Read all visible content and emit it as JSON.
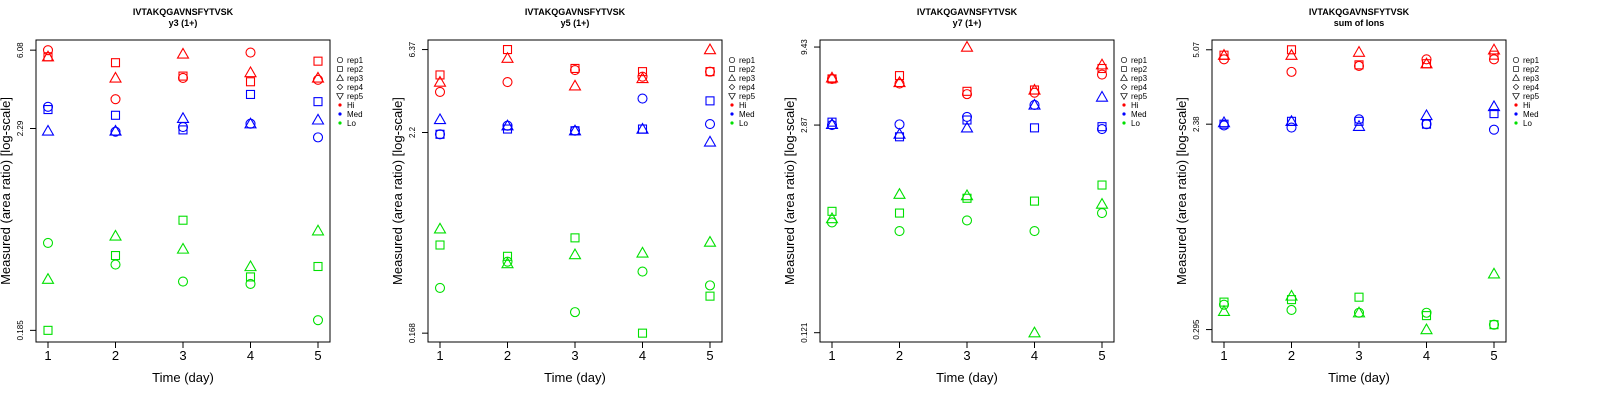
{
  "figure_title": "IVTAKQGAVNSFYTVSK",
  "colors": {
    "Hi": "#ff0000",
    "Med": "#0000ff",
    "Lo": "#00e000",
    "axis": "#000000"
  },
  "legend": {
    "replicates": [
      {
        "label": "rep1",
        "marker": "circle"
      },
      {
        "label": "rep2",
        "marker": "square"
      },
      {
        "label": "rep3",
        "marker": "triangle-up"
      },
      {
        "label": "rep4",
        "marker": "diamond"
      },
      {
        "label": "rep5",
        "marker": "triangle-down"
      }
    ],
    "groups": [
      {
        "label": "Hi",
        "color": "#ff0000"
      },
      {
        "label": "Med",
        "color": "#0000ff"
      },
      {
        "label": "Lo",
        "color": "#00e000"
      }
    ]
  },
  "chart_data": [
    {
      "type": "scatter",
      "title": "IVTAKQGAVNSFYTVSK",
      "subtitle": "y3 (1+)",
      "xlabel": "Time (day)",
      "ylabel": "Measured (area ratio) [log-scale]",
      "x_ticks": [
        1,
        2,
        3,
        4,
        5
      ],
      "y_ticks": [
        "6.08",
        "2.29",
        "0.185"
      ],
      "ylim": [
        0.16,
        6.9
      ],
      "y_scale": "log",
      "series": [
        {
          "name": "Hi rep1",
          "group": "Hi",
          "marker": "circle",
          "x": [
            1,
            2,
            3,
            4,
            5
          ],
          "y": [
            6.08,
            3.3,
            4.3,
            5.9,
            4.2
          ]
        },
        {
          "name": "Hi rep2",
          "group": "Hi",
          "marker": "square",
          "x": [
            1,
            2,
            3,
            4,
            5
          ],
          "y": [
            5.6,
            5.2,
            4.4,
            4.1,
            5.3
          ]
        },
        {
          "name": "Hi rep3",
          "group": "Hi",
          "marker": "triangle-up",
          "x": [
            1,
            2,
            3,
            4,
            5
          ],
          "y": [
            5.6,
            4.3,
            5.8,
            4.6,
            4.3
          ]
        },
        {
          "name": "Med rep1",
          "group": "Med",
          "marker": "circle",
          "x": [
            1,
            2,
            3,
            4,
            5
          ],
          "y": [
            3.0,
            2.2,
            2.33,
            2.43,
            2.05
          ]
        },
        {
          "name": "Med rep2",
          "group": "Med",
          "marker": "square",
          "x": [
            1,
            2,
            3,
            4,
            5
          ],
          "y": [
            2.9,
            2.7,
            2.25,
            3.5,
            3.2
          ]
        },
        {
          "name": "Med rep3",
          "group": "Med",
          "marker": "triangle-up",
          "x": [
            1,
            2,
            3,
            4,
            5
          ],
          "y": [
            2.22,
            2.22,
            2.6,
            2.43,
            2.55
          ]
        },
        {
          "name": "Lo rep1",
          "group": "Lo",
          "marker": "circle",
          "x": [
            1,
            2,
            3,
            4,
            5
          ],
          "y": [
            0.55,
            0.42,
            0.34,
            0.33,
            0.21
          ]
        },
        {
          "name": "Lo rep2",
          "group": "Lo",
          "marker": "square",
          "x": [
            1,
            2,
            3,
            4,
            5
          ],
          "y": [
            0.185,
            0.47,
            0.73,
            0.36,
            0.41
          ]
        },
        {
          "name": "Lo rep3",
          "group": "Lo",
          "marker": "triangle-up",
          "x": [
            1,
            2,
            3,
            4,
            5
          ],
          "y": [
            0.35,
            0.6,
            0.51,
            0.41,
            0.64
          ]
        }
      ]
    },
    {
      "type": "scatter",
      "title": "IVTAKQGAVNSFYTVSK",
      "subtitle": "y5 (1+)",
      "xlabel": "Time (day)",
      "ylabel": "Measured (area ratio) [log-scale]",
      "x_ticks": [
        1,
        2,
        3,
        4,
        5
      ],
      "y_ticks": [
        "6.37",
        "2.2",
        "0.168"
      ],
      "ylim": [
        0.15,
        7.2
      ],
      "y_scale": "log",
      "series": [
        {
          "name": "Hi rep1",
          "group": "Hi",
          "marker": "circle",
          "x": [
            1,
            2,
            3,
            4,
            5
          ],
          "y": [
            3.7,
            4.2,
            4.9,
            4.5,
            4.8
          ]
        },
        {
          "name": "Hi rep2",
          "group": "Hi",
          "marker": "square",
          "x": [
            1,
            2,
            3,
            4,
            5
          ],
          "y": [
            4.6,
            6.37,
            5.0,
            4.8,
            4.8
          ]
        },
        {
          "name": "Hi rep3",
          "group": "Hi",
          "marker": "triangle-up",
          "x": [
            1,
            2,
            3,
            4,
            5
          ],
          "y": [
            4.2,
            5.7,
            4.0,
            4.4,
            6.37
          ]
        },
        {
          "name": "Med rep1",
          "group": "Med",
          "marker": "circle",
          "x": [
            1,
            2,
            3,
            4,
            5
          ],
          "y": [
            2.15,
            2.4,
            2.25,
            3.4,
            2.45
          ]
        },
        {
          "name": "Med rep2",
          "group": "Med",
          "marker": "square",
          "x": [
            1,
            2,
            3,
            4,
            5
          ],
          "y": [
            2.15,
            2.3,
            2.25,
            2.3,
            3.3
          ]
        },
        {
          "name": "Med rep3",
          "group": "Med",
          "marker": "triangle-up",
          "x": [
            1,
            2,
            3,
            4,
            5
          ],
          "y": [
            2.6,
            2.4,
            2.25,
            2.3,
            1.95
          ]
        },
        {
          "name": "Lo rep1",
          "group": "Lo",
          "marker": "circle",
          "x": [
            1,
            2,
            3,
            4,
            5
          ],
          "y": [
            0.3,
            0.42,
            0.22,
            0.37,
            0.31
          ]
        },
        {
          "name": "Lo rep2",
          "group": "Lo",
          "marker": "square",
          "x": [
            1,
            2,
            3,
            4,
            5
          ],
          "y": [
            0.52,
            0.45,
            0.57,
            0.168,
            0.27
          ]
        },
        {
          "name": "Lo rep3",
          "group": "Lo",
          "marker": "triangle-up",
          "x": [
            1,
            2,
            3,
            4,
            5
          ],
          "y": [
            0.64,
            0.41,
            0.46,
            0.47,
            0.54
          ]
        }
      ]
    },
    {
      "type": "scatter",
      "title": "IVTAKQGAVNSFYTVSK",
      "subtitle": "y7 (1+)",
      "xlabel": "Time (day)",
      "ylabel": "Measured (area ratio) [log-scale]",
      "x_ticks": [
        1,
        2,
        3,
        4,
        5
      ],
      "y_ticks": [
        "9.43",
        "2.87",
        "0.121"
      ],
      "ylim": [
        0.105,
        10.5
      ],
      "y_scale": "log",
      "series": [
        {
          "name": "Hi rep1",
          "group": "Hi",
          "marker": "circle",
          "x": [
            1,
            2,
            3,
            4,
            5
          ],
          "y": [
            5.8,
            5.4,
            4.6,
            4.7,
            6.2
          ]
        },
        {
          "name": "Hi rep2",
          "group": "Hi",
          "marker": "square",
          "x": [
            1,
            2,
            3,
            4,
            5
          ],
          "y": [
            5.8,
            6.1,
            4.8,
            4.9,
            6.8
          ]
        },
        {
          "name": "Hi rep3",
          "group": "Hi",
          "marker": "triangle-up",
          "x": [
            1,
            2,
            3,
            4,
            5
          ],
          "y": [
            5.9,
            5.5,
            9.43,
            4.9,
            7.2
          ]
        },
        {
          "name": "Med rep1",
          "group": "Med",
          "marker": "circle",
          "x": [
            1,
            2,
            3,
            4,
            5
          ],
          "y": [
            2.87,
            2.9,
            3.25,
            3.9,
            2.7
          ]
        },
        {
          "name": "Med rep2",
          "group": "Med",
          "marker": "square",
          "x": [
            1,
            2,
            3,
            4,
            5
          ],
          "y": [
            3.0,
            2.4,
            3.1,
            2.75,
            2.8
          ]
        },
        {
          "name": "Med rep3",
          "group": "Med",
          "marker": "triangle-up",
          "x": [
            1,
            2,
            3,
            4,
            5
          ],
          "y": [
            2.9,
            2.5,
            2.75,
            3.9,
            4.4
          ]
        },
        {
          "name": "Lo rep1",
          "group": "Lo",
          "marker": "circle",
          "x": [
            1,
            2,
            3,
            4,
            5
          ],
          "y": [
            0.65,
            0.57,
            0.67,
            0.57,
            0.75
          ]
        },
        {
          "name": "Lo rep2",
          "group": "Lo",
          "marker": "square",
          "x": [
            1,
            2,
            3,
            4,
            5
          ],
          "y": [
            0.77,
            0.75,
            0.94,
            0.9,
            1.15
          ]
        },
        {
          "name": "Lo rep3",
          "group": "Lo",
          "marker": "triangle-up",
          "x": [
            1,
            2,
            3,
            4,
            5
          ],
          "y": [
            0.69,
            1.0,
            0.98,
            0.121,
            0.86
          ]
        }
      ]
    },
    {
      "type": "scatter",
      "title": "IVTAKQGAVNSFYTVSK",
      "subtitle": "sum of Ions",
      "xlabel": "Time (day)",
      "ylabel": "Measured (area ratio) [log-scale]",
      "x_ticks": [
        1,
        2,
        3,
        4,
        5
      ],
      "y_ticks": [
        "5.07",
        "2.38",
        "0.295"
      ],
      "ylim": [
        0.26,
        5.6
      ],
      "y_scale": "log",
      "series": [
        {
          "name": "Hi rep1",
          "group": "Hi",
          "marker": "circle",
          "x": [
            1,
            2,
            3,
            4,
            5
          ],
          "y": [
            4.6,
            4.05,
            4.3,
            4.6,
            4.6
          ]
        },
        {
          "name": "Hi rep2",
          "group": "Hi",
          "marker": "square",
          "x": [
            1,
            2,
            3,
            4,
            5
          ],
          "y": [
            4.8,
            5.07,
            4.35,
            4.4,
            4.8
          ]
        },
        {
          "name": "Hi rep3",
          "group": "Hi",
          "marker": "triangle-up",
          "x": [
            1,
            2,
            3,
            4,
            5
          ],
          "y": [
            4.8,
            4.8,
            4.95,
            4.4,
            5.07
          ]
        },
        {
          "name": "Med rep1",
          "group": "Med",
          "marker": "circle",
          "x": [
            1,
            2,
            3,
            4,
            5
          ],
          "y": [
            2.35,
            2.3,
            2.5,
            2.38,
            2.25
          ]
        },
        {
          "name": "Med rep2",
          "group": "Med",
          "marker": "square",
          "x": [
            1,
            2,
            3,
            4,
            5
          ],
          "y": [
            2.38,
            2.45,
            2.45,
            2.38,
            2.65
          ]
        },
        {
          "name": "Med rep3",
          "group": "Med",
          "marker": "triangle-up",
          "x": [
            1,
            2,
            3,
            4,
            5
          ],
          "y": [
            2.42,
            2.45,
            2.33,
            2.6,
            2.85
          ]
        },
        {
          "name": "Lo rep1",
          "group": "Lo",
          "marker": "circle",
          "x": [
            1,
            2,
            3,
            4,
            5
          ],
          "y": [
            0.38,
            0.36,
            0.35,
            0.35,
            0.31
          ]
        },
        {
          "name": "Lo rep2",
          "group": "Lo",
          "marker": "square",
          "x": [
            1,
            2,
            3,
            4,
            5
          ],
          "y": [
            0.39,
            0.4,
            0.41,
            0.34,
            0.31
          ]
        },
        {
          "name": "Lo rep3",
          "group": "Lo",
          "marker": "triangle-up",
          "x": [
            1,
            2,
            3,
            4,
            5
          ],
          "y": [
            0.355,
            0.415,
            0.35,
            0.295,
            0.52
          ]
        }
      ]
    }
  ]
}
